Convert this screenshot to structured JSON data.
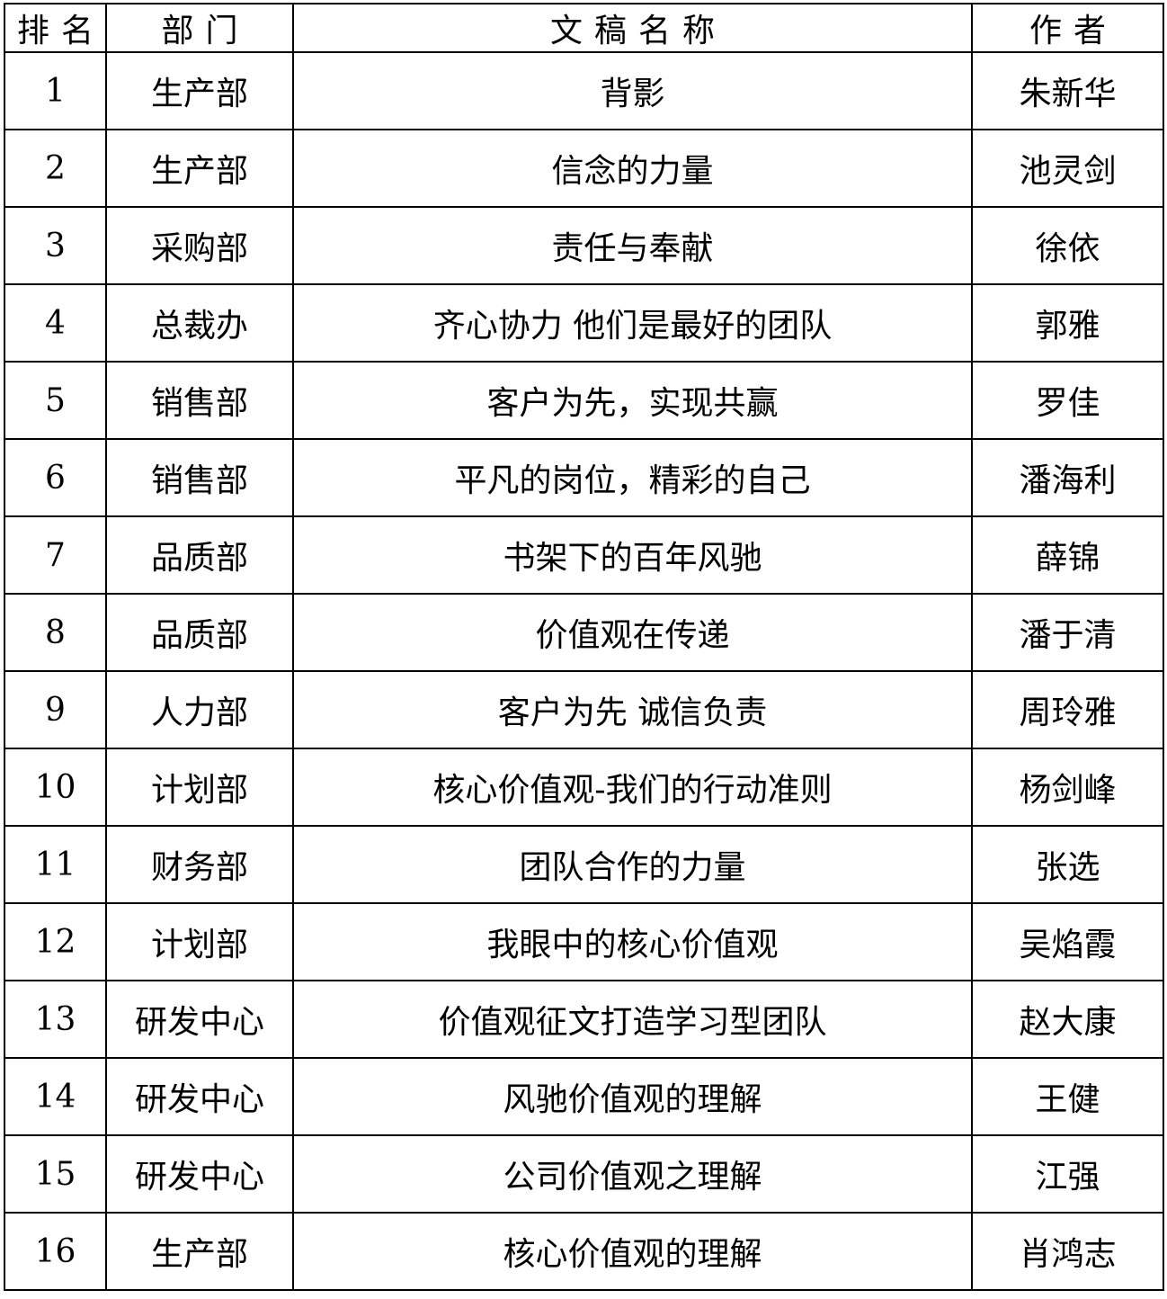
{
  "colors": {
    "background": "#ffffff",
    "border": "#000000",
    "text": "#000000"
  },
  "table": {
    "columns": [
      {
        "key": "rank",
        "label": "排名"
      },
      {
        "key": "department",
        "label": "部门"
      },
      {
        "key": "title",
        "label": "文稿名称"
      },
      {
        "key": "author",
        "label": "作者"
      }
    ],
    "rows": [
      {
        "rank": "1",
        "department": "生产部",
        "title": "背影",
        "author": "朱新华"
      },
      {
        "rank": "2",
        "department": "生产部",
        "title": "信念的力量",
        "author": "池灵剑"
      },
      {
        "rank": "3",
        "department": "采购部",
        "title": "责任与奉献",
        "author": "徐依"
      },
      {
        "rank": "4",
        "department": "总裁办",
        "title": "齐心协力 他们是最好的团队",
        "author": "郭雅"
      },
      {
        "rank": "5",
        "department": "销售部",
        "title": "客户为先，实现共赢",
        "author": "罗佳"
      },
      {
        "rank": "6",
        "department": "销售部",
        "title": "平凡的岗位，精彩的自己",
        "author": "潘海利"
      },
      {
        "rank": "7",
        "department": "品质部",
        "title": "书架下的百年风驰",
        "author": "薛锦"
      },
      {
        "rank": "8",
        "department": "品质部",
        "title": "价值观在传递",
        "author": "潘于清"
      },
      {
        "rank": "9",
        "department": "人力部",
        "title": "客户为先 诚信负责",
        "author": "周玲雅"
      },
      {
        "rank": "10",
        "department": "计划部",
        "title": "核心价值观-我们的行动准则",
        "author": "杨剑峰"
      },
      {
        "rank": "11",
        "department": "财务部",
        "title": "团队合作的力量",
        "author": "张选"
      },
      {
        "rank": "12",
        "department": "计划部",
        "title": "我眼中的核心价值观",
        "author": "吴焰霞"
      },
      {
        "rank": "13",
        "department": "研发中心",
        "title": "价值观征文打造学习型团队",
        "author": "赵大康"
      },
      {
        "rank": "14",
        "department": "研发中心",
        "title": "风驰价值观的理解",
        "author": "王健"
      },
      {
        "rank": "15",
        "department": "研发中心",
        "title": "公司价值观之理解",
        "author": "江强"
      },
      {
        "rank": "16",
        "department": "生产部",
        "title": "核心价值观的理解",
        "author": "肖鸿志"
      }
    ]
  }
}
